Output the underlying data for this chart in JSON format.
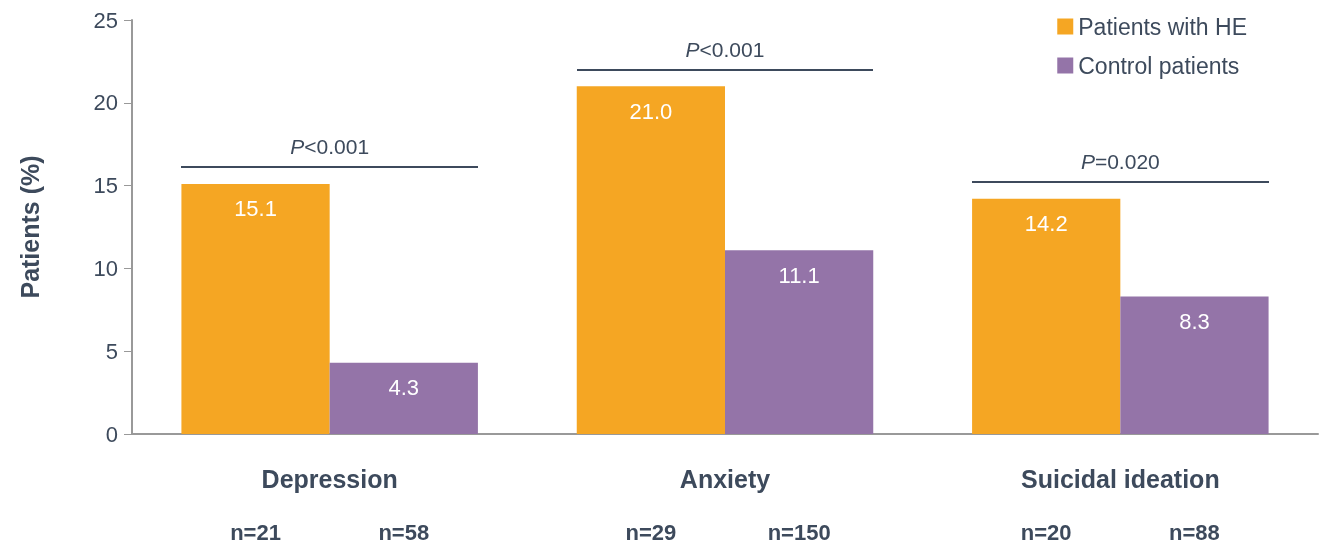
{
  "chart_data": {
    "type": "bar",
    "ylabel": "Patients (%)",
    "categories": [
      "Depression",
      "Anxiety",
      "Suicidal ideation"
    ],
    "series": [
      {
        "name": "Patients with HE",
        "color": "#f5a623",
        "values": [
          15.1,
          21.0,
          14.2
        ],
        "value_labels": [
          "15.1",
          "21.0",
          "14.2"
        ]
      },
      {
        "name": "Control patients",
        "color": "#9474a8",
        "values": [
          4.3,
          11.1,
          8.3
        ],
        "value_labels": [
          "4.3",
          "11.1",
          "8.3"
        ]
      }
    ],
    "ylim": [
      0,
      25
    ],
    "yticks": [
      0,
      5,
      10,
      15,
      20,
      25
    ],
    "grid": false,
    "legend": "top right",
    "annotations": [
      "P<0.001",
      "P<0.001",
      "P=0.020",
      "n=21",
      "n=58",
      "n=29",
      "n=150",
      "n=20",
      "n=88"
    ]
  }
}
